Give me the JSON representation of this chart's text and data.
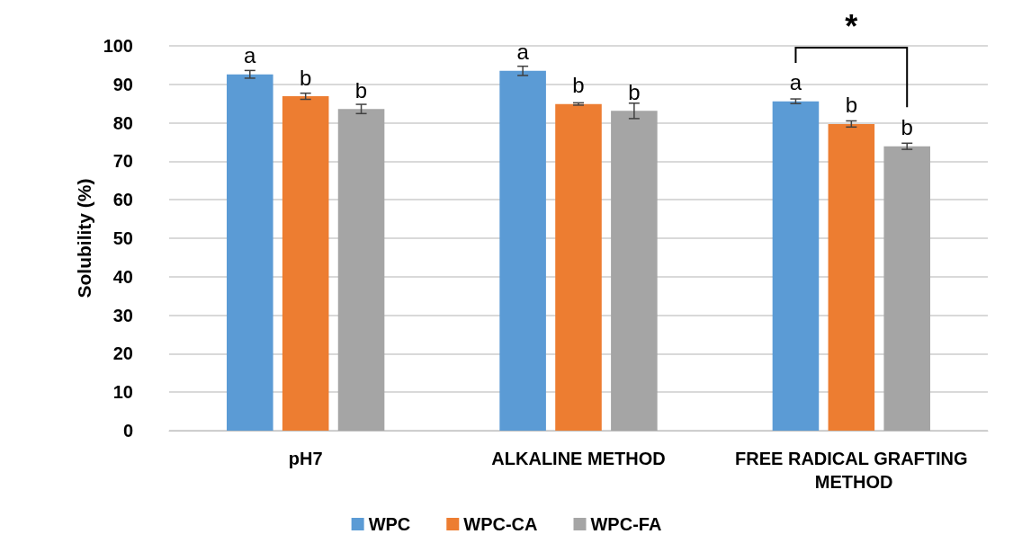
{
  "chart_data": {
    "type": "bar",
    "ylabel": "Solubility (%)",
    "categories": [
      "pH7",
      "ALKALINE METHOD",
      "FREE RADICAL GRAFTING METHOD"
    ],
    "series": [
      {
        "name": "WPC",
        "color": "#5b9bd5",
        "values": [
          92.6,
          93.5,
          85.6
        ],
        "errors": [
          1,
          1.2,
          0.6
        ],
        "value_labels": [
          "a",
          "a",
          "a"
        ]
      },
      {
        "name": "WPC-CA",
        "color": "#ed7d31",
        "values": [
          86.9,
          84.9,
          79.7
        ],
        "errors": [
          0.8,
          0.3,
          0.8
        ],
        "value_labels": [
          "b",
          "b",
          "b"
        ]
      },
      {
        "name": "WPC-FA",
        "color": "#a5a5a5",
        "values": [
          83.6,
          83.1,
          73.9
        ],
        "errors": [
          1.2,
          2,
          0.8
        ],
        "value_labels": [
          "b",
          "b",
          "b"
        ]
      }
    ],
    "ylim": [
      0,
      100
    ],
    "yticks": [
      0,
      10,
      20,
      30,
      40,
      50,
      60,
      70,
      80,
      90,
      100
    ],
    "grid": "y",
    "legend": "bottom",
    "annotations": [
      "*"
    ]
  }
}
